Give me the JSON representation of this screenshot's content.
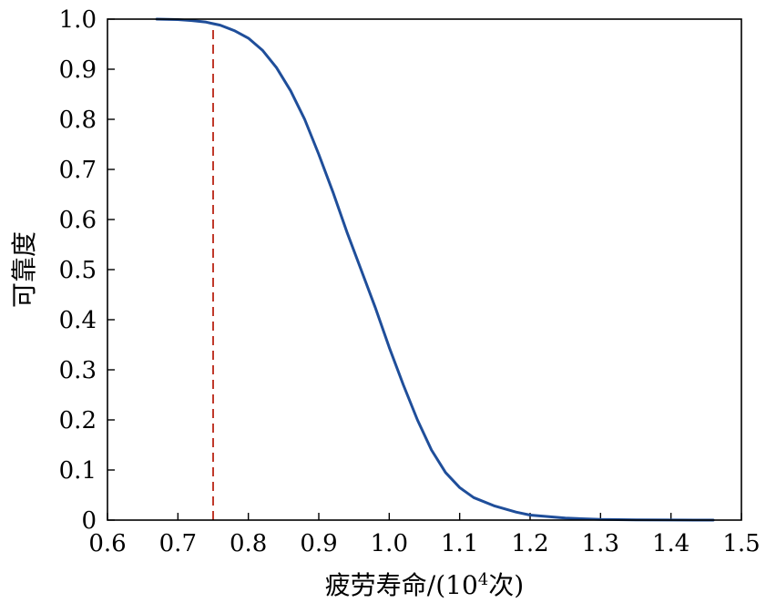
{
  "chart_data": {
    "type": "line",
    "xlabel": {
      "main": "疲劳寿命/(10",
      "superscript": "4",
      "tail": "次)"
    },
    "ylabel": "可靠度",
    "xlim": [
      0.6,
      1.5
    ],
    "ylim": [
      0,
      1.0
    ],
    "x_ticks": [
      "0.6",
      "0.7",
      "0.8",
      "0.9",
      "1.0",
      "1.1",
      "1.2",
      "1.3",
      "1.4",
      "1.5"
    ],
    "y_ticks": [
      "0",
      "0.1",
      "0.2",
      "0.3",
      "0.4",
      "0.5",
      "0.6",
      "0.7",
      "0.8",
      "0.9",
      "1.0"
    ],
    "grid": false,
    "series": [
      {
        "color": "#1f4e9a",
        "style": "solid",
        "x": [
          0.67,
          0.7,
          0.72,
          0.74,
          0.75,
          0.76,
          0.78,
          0.8,
          0.82,
          0.84,
          0.86,
          0.88,
          0.9,
          0.92,
          0.94,
          0.96,
          0.98,
          1.0,
          1.02,
          1.04,
          1.06,
          1.08,
          1.1,
          1.12,
          1.15,
          1.18,
          1.2,
          1.25,
          1.3,
          1.35,
          1.4,
          1.46
        ],
        "y": [
          1.0,
          0.999,
          0.997,
          0.994,
          0.991,
          0.988,
          0.977,
          0.962,
          0.938,
          0.903,
          0.857,
          0.8,
          0.73,
          0.655,
          0.575,
          0.5,
          0.425,
          0.345,
          0.27,
          0.2,
          0.14,
          0.095,
          0.065,
          0.045,
          0.028,
          0.016,
          0.01,
          0.004,
          0.0015,
          0.0005,
          0.0001,
          0.0
        ]
      }
    ],
    "reference_line": {
      "orientation": "vertical",
      "x": 0.75,
      "color": "#c0392b",
      "style": "dashed"
    }
  }
}
